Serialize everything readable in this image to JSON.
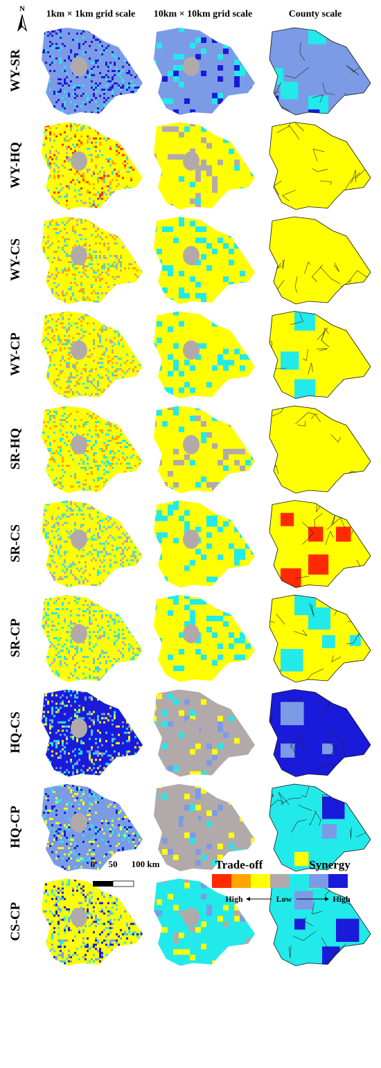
{
  "north": "N",
  "columns": [
    "1km × 1km grid scale",
    "10km × 10km grid scale",
    "County scale"
  ],
  "rows": [
    "WY-SR",
    "WY-HQ",
    "WY-CS",
    "WY-CP",
    "SR-HQ",
    "SR-CS",
    "SR-CP",
    "HQ-CS",
    "HQ-CP",
    "CS-CP"
  ],
  "scale_bar": {
    "labels": [
      "0",
      "50",
      "100 km"
    ]
  },
  "legend": {
    "left_title": "Trade-off",
    "right_title": "Synergy",
    "low_end": "High",
    "middle": "Low",
    "high_end": "High"
  }
}
